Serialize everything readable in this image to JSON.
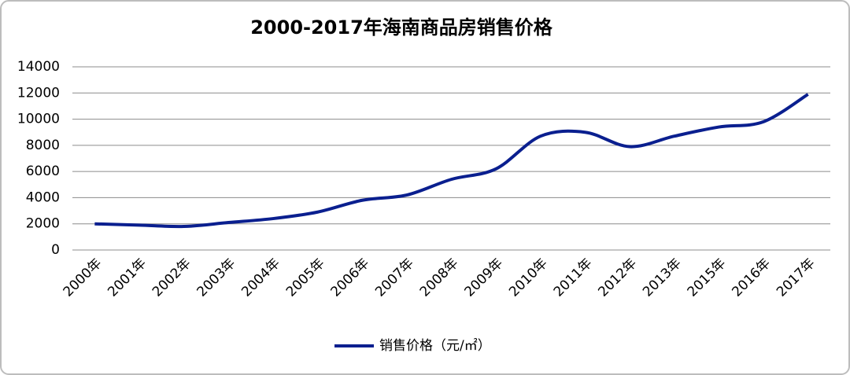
{
  "chart_data": {
    "type": "line",
    "title": "2000-2017年海南商品房销售价格",
    "categories": [
      "2000年",
      "2001年",
      "2002年",
      "2003年",
      "2004年",
      "2005年",
      "2006年",
      "2007年",
      "2008年",
      "2009年",
      "2010年",
      "2011年",
      "2012年",
      "2013年",
      "2015年",
      "2016年",
      "2017年"
    ],
    "series": [
      {
        "name": "销售价格（元/㎡）",
        "color": "#0a1f8f",
        "values": [
          2000,
          1900,
          1800,
          2100,
          2400,
          2900,
          3800,
          4200,
          5400,
          6200,
          8700,
          9000,
          7900,
          8700,
          9400,
          9800,
          11900
        ]
      }
    ],
    "ylim": [
      0,
      14000
    ],
    "yticks": [
      0,
      2000,
      4000,
      6000,
      8000,
      10000,
      12000,
      14000
    ],
    "grid": true,
    "smooth": true,
    "legend": "bottom"
  }
}
